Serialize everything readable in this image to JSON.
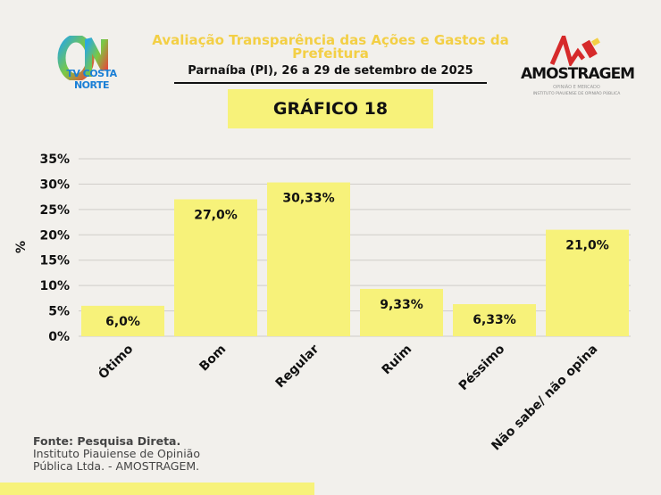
{
  "header": {
    "title": "Avaliação Transparência das Ações e Gastos da Prefeitura",
    "subtitle": "Parnaíba (PI), 26 a 29 de setembro de 2025",
    "chart_label": "GRÁFICO 18",
    "logo_left": "TV COSTA NORTE",
    "logo_right": "AMOSTRAGEM",
    "logo_right_tagline": "OPINIÃO E MERCADO",
    "logo_right_sub": "INSTITUTO PIAUIENSE DE OPINIÃO PÚBLICA"
  },
  "footer": {
    "source_bold": "Fonte: Pesquisa Direta.",
    "source_line1": "Instituto Piauiense de Opinião",
    "source_line2": "Pública Ltda. - AMOSTRAGEM."
  },
  "colors": {
    "bar": "#f7f27a",
    "title": "#f3cf45",
    "accent_bar": "#f7f27a"
  },
  "chart_data": {
    "type": "bar",
    "categories": [
      "Ótimo",
      "Bom",
      "Regular",
      "Ruim",
      "Péssimo",
      "Não sabe/ não opina"
    ],
    "values": [
      6.0,
      27.0,
      30.33,
      9.33,
      6.33,
      21.0
    ],
    "data_labels": [
      "6,0%",
      "27,0%",
      "30,33%",
      "9,33%",
      "6,33%",
      "21,0%"
    ],
    "ylabel": "%",
    "ylim": [
      0,
      35
    ],
    "yticks": [
      "0%",
      "5%",
      "10%",
      "15%",
      "20%",
      "25%",
      "30%",
      "35%"
    ],
    "grid": true
  }
}
